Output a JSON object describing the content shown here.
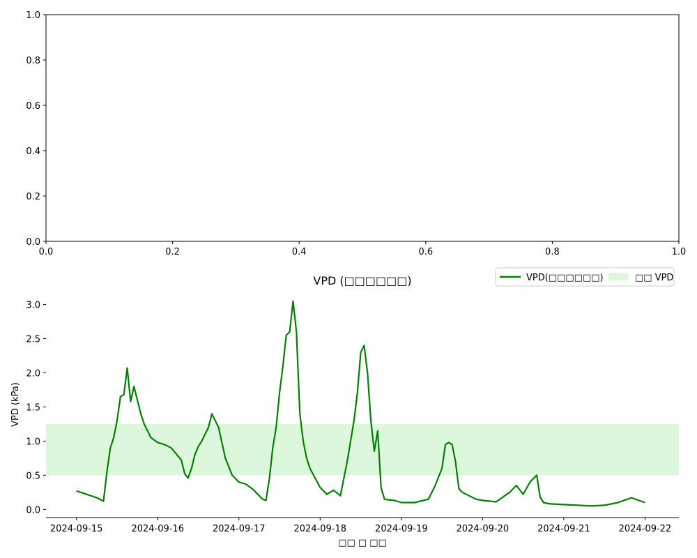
{
  "chart_data": [
    {
      "type": "line",
      "title": "",
      "xlabel": "",
      "ylabel": "",
      "xlim": [
        0.0,
        1.0
      ],
      "ylim": [
        0.0,
        1.0
      ],
      "x_ticks": [
        "0.0",
        "0.2",
        "0.4",
        "0.6",
        "0.8",
        "1.0"
      ],
      "y_ticks": [
        "0.0",
        "0.2",
        "0.4",
        "0.6",
        "0.8",
        "1.0"
      ],
      "series": []
    },
    {
      "type": "line",
      "title": "VPD (□□□□□□)",
      "xlabel": "□□ □ □□",
      "ylabel": "VPD (kPa)",
      "ylim": [
        -0.12,
        3.2
      ],
      "xlim": [
        "2024-09-14 15:00",
        "2024-09-22 10:00"
      ],
      "x_ticks": [
        "2024-09-15",
        "2024-09-16",
        "2024-09-17",
        "2024-09-18",
        "2024-09-19",
        "2024-09-20",
        "2024-09-21",
        "2024-09-22"
      ],
      "y_ticks": [
        "0.0",
        "0.5",
        "1.0",
        "1.5",
        "2.0",
        "2.5",
        "3.0"
      ],
      "legend": {
        "location": "top-right",
        "entries": [
          "VPD(□□□□□□)",
          "□□ VPD"
        ]
      },
      "band": {
        "name": "□□ VPD",
        "y_min": 0.5,
        "y_max": 1.25,
        "color": "#dcf7dc"
      },
      "line_color": "#008000",
      "series": [
        {
          "name": "VPD(□□□□□□)",
          "x": [
            "2024-09-15 00:00",
            "2024-09-15 03:00",
            "2024-09-15 06:00",
            "2024-09-15 08:00",
            "2024-09-15 09:00",
            "2024-09-15 10:00",
            "2024-09-15 11:00",
            "2024-09-15 12:00",
            "2024-09-15 13:00",
            "2024-09-15 14:00",
            "2024-09-15 15:00",
            "2024-09-15 16:00",
            "2024-09-15 17:00",
            "2024-09-15 18:00",
            "2024-09-15 19:00",
            "2024-09-15 20:00",
            "2024-09-15 21:00",
            "2024-09-15 22:00",
            "2024-09-16 00:00",
            "2024-09-16 02:00",
            "2024-09-16 04:00",
            "2024-09-16 06:00",
            "2024-09-16 07:00",
            "2024-09-16 08:00",
            "2024-09-16 09:00",
            "2024-09-16 10:00",
            "2024-09-16 11:00",
            "2024-09-16 12:00",
            "2024-09-16 13:00",
            "2024-09-16 14:00",
            "2024-09-16 15:00",
            "2024-09-16 16:00",
            "2024-09-16 17:00",
            "2024-09-16 18:00",
            "2024-09-16 20:00",
            "2024-09-16 22:00",
            "2024-09-17 00:00",
            "2024-09-17 02:00",
            "2024-09-17 04:00",
            "2024-09-17 06:00",
            "2024-09-17 07:00",
            "2024-09-17 08:00",
            "2024-09-17 09:00",
            "2024-09-17 10:00",
            "2024-09-17 11:00",
            "2024-09-17 12:00",
            "2024-09-17 13:00",
            "2024-09-17 14:00",
            "2024-09-17 15:00",
            "2024-09-17 16:00",
            "2024-09-17 17:00",
            "2024-09-17 18:00",
            "2024-09-17 19:00",
            "2024-09-17 20:00",
            "2024-09-17 21:00",
            "2024-09-18 00:00",
            "2024-09-18 02:00",
            "2024-09-18 04:00",
            "2024-09-18 06:00",
            "2024-09-18 08:00",
            "2024-09-18 09:00",
            "2024-09-18 10:00",
            "2024-09-18 11:00",
            "2024-09-18 12:00",
            "2024-09-18 13:00",
            "2024-09-18 14:00",
            "2024-09-18 15:00",
            "2024-09-18 16:00",
            "2024-09-18 17:00",
            "2024-09-18 18:00",
            "2024-09-18 19:00",
            "2024-09-18 20:00",
            "2024-09-18 22:00",
            "2024-09-19 00:00",
            "2024-09-19 04:00",
            "2024-09-19 08:00",
            "2024-09-19 10:00",
            "2024-09-19 12:00",
            "2024-09-19 13:00",
            "2024-09-19 14:00",
            "2024-09-19 15:00",
            "2024-09-19 16:00",
            "2024-09-19 17:00",
            "2024-09-19 18:00",
            "2024-09-19 20:00",
            "2024-09-19 22:00",
            "2024-09-20 00:00",
            "2024-09-20 04:00",
            "2024-09-20 08:00",
            "2024-09-20 10:00",
            "2024-09-20 12:00",
            "2024-09-20 14:00",
            "2024-09-20 16:00",
            "2024-09-20 17:00",
            "2024-09-20 18:00",
            "2024-09-20 20:00",
            "2024-09-21 00:00",
            "2024-09-21 04:00",
            "2024-09-21 08:00",
            "2024-09-21 12:00",
            "2024-09-21 16:00",
            "2024-09-21 20:00",
            "2024-09-22 00:00"
          ],
          "y": [
            0.27,
            0.22,
            0.17,
            0.12,
            0.55,
            0.9,
            1.05,
            1.3,
            1.65,
            1.68,
            2.07,
            1.58,
            1.8,
            1.6,
            1.4,
            1.25,
            1.15,
            1.05,
            0.98,
            0.95,
            0.9,
            0.78,
            0.72,
            0.52,
            0.46,
            0.6,
            0.8,
            0.92,
            1.0,
            1.1,
            1.2,
            1.4,
            1.3,
            1.2,
            0.75,
            0.5,
            0.4,
            0.37,
            0.3,
            0.2,
            0.15,
            0.13,
            0.45,
            0.9,
            1.2,
            1.7,
            2.1,
            2.55,
            2.6,
            3.05,
            2.6,
            1.4,
            1.0,
            0.75,
            0.6,
            0.32,
            0.22,
            0.28,
            0.2,
            0.7,
            1.0,
            1.3,
            1.7,
            2.3,
            2.4,
            2.0,
            1.3,
            0.85,
            1.15,
            0.32,
            0.15,
            0.14,
            0.13,
            0.1,
            0.1,
            0.15,
            0.35,
            0.6,
            0.95,
            0.98,
            0.95,
            0.7,
            0.3,
            0.25,
            0.2,
            0.15,
            0.13,
            0.11,
            0.25,
            0.35,
            0.22,
            0.4,
            0.5,
            0.18,
            0.1,
            0.08,
            0.07,
            0.06,
            0.05,
            0.06,
            0.1,
            0.17,
            0.1
          ]
        }
      ]
    }
  ]
}
